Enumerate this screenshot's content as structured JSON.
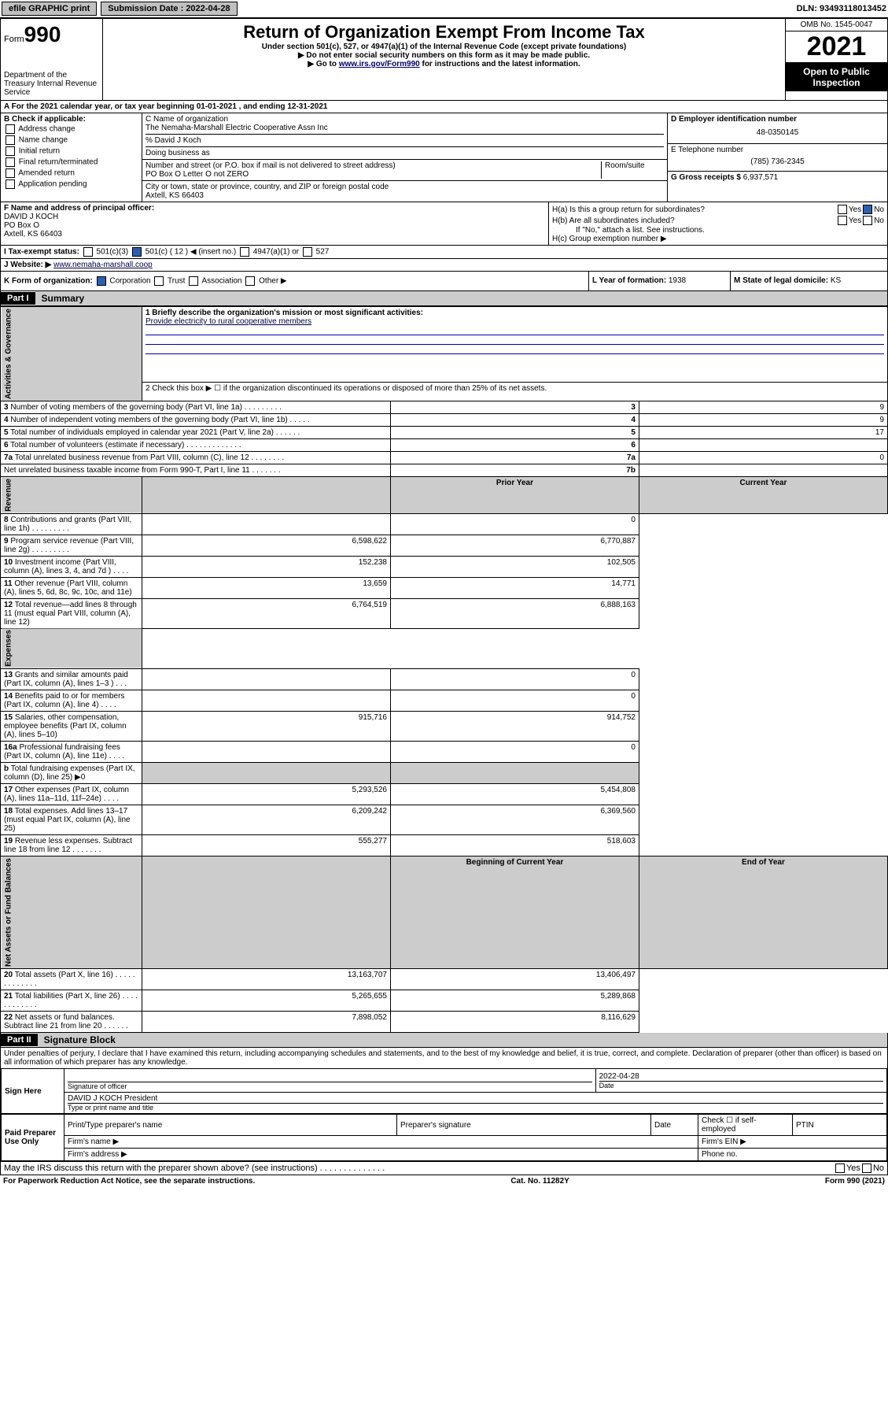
{
  "topbar": {
    "efile": "efile GRAPHIC print",
    "sub_label": "Submission Date : 2022-04-28",
    "dln": "DLN: 93493118013452"
  },
  "header": {
    "form_label": "Form",
    "form_num": "990",
    "dept": "Department of the Treasury Internal Revenue Service",
    "title": "Return of Organization Exempt From Income Tax",
    "sub": "Under section 501(c), 527, or 4947(a)(1) of the Internal Revenue Code (except private foundations)",
    "inst1": "▶ Do not enter social security numbers on this form as it may be made public.",
    "inst2_pre": "▶ Go to ",
    "inst2_link": "www.irs.gov/Form990",
    "inst2_post": " for instructions and the latest information.",
    "omb": "OMB No. 1545-0047",
    "year": "2021",
    "open": "Open to Public Inspection"
  },
  "section_a": "A For the 2021 calendar year, or tax year beginning 01-01-2021   , and ending 12-31-2021",
  "col_b": {
    "label": "B Check if applicable:",
    "items": [
      "Address change",
      "Name change",
      "Initial return",
      "Final return/terminated",
      "Amended return",
      "Application pending"
    ]
  },
  "col_c": {
    "name_label": "C Name of organization",
    "name": "The Nemaha-Marshall Electric Cooperative Assn Inc",
    "care_of": "% David J Koch",
    "dba_label": "Doing business as",
    "addr_label": "Number and street (or P.O. box if mail is not delivered to street address)",
    "addr": "PO Box O Letter O not ZERO",
    "room_label": "Room/suite",
    "city_label": "City or town, state or province, country, and ZIP or foreign postal code",
    "city": "Axtell, KS  66403"
  },
  "col_de": {
    "d_label": "D Employer identification number",
    "d_val": "48-0350145",
    "e_label": "E Telephone number",
    "e_val": "(785) 736-2345",
    "g_label": "G Gross receipts $",
    "g_val": "6,937,571"
  },
  "col_f": {
    "label": "F Name and address of principal officer:",
    "name": "DAVID J KOCH",
    "addr": "PO Box O",
    "city": "Axtell, KS  66403"
  },
  "col_h": {
    "a_label": "H(a) Is this a group return for subordinates?",
    "b_label": "H(b) Are all subordinates included?",
    "b_note": "If \"No,\" attach a list. See instructions.",
    "c_label": "H(c) Group exemption number ▶",
    "yes": "Yes",
    "no": "No"
  },
  "row_i": {
    "label": "I    Tax-exempt status:",
    "opts": [
      "501(c)(3)",
      "501(c) ( 12 ) ◀ (insert no.)",
      "4947(a)(1) or",
      "527"
    ]
  },
  "row_j": {
    "label": "J   Website: ▶",
    "val": "www.nemaha-marshall.coop"
  },
  "row_k": {
    "label": "K Form of organization:",
    "opts": [
      "Corporation",
      "Trust",
      "Association",
      "Other ▶"
    ]
  },
  "row_l": {
    "label": "L Year of formation:",
    "val": "1938"
  },
  "row_m": {
    "label": "M State of legal domicile:",
    "val": "KS"
  },
  "part1": {
    "header": "Part I",
    "title": "Summary",
    "q1_label": "1  Briefly describe the organization's mission or most significant activities:",
    "q1_val": "Provide electricity to rural cooperative members",
    "q2": "2   Check this box ▶ ☐ if the organization discontinued its operations or disposed of more than 25% of its net assets.",
    "governance": [
      {
        "n": "3",
        "t": "Number of voting members of the governing body (Part VI, line 1a)  .   .   .   .   .   .   .   .   .",
        "k": "3",
        "v": "9"
      },
      {
        "n": "4",
        "t": "Number of independent voting members of the governing body (Part VI, line 1b)   .   .   .   .   .",
        "k": "4",
        "v": "9"
      },
      {
        "n": "5",
        "t": "Total number of individuals employed in calendar year 2021 (Part V, line 2a)   .   .   .   .   .   .",
        "k": "5",
        "v": "17"
      },
      {
        "n": "6",
        "t": "Total number of volunteers (estimate if necessary)   .   .   .   .   .   .   .   .   .   .   .   .   .",
        "k": "6",
        "v": ""
      },
      {
        "n": "7a",
        "t": "Total unrelated business revenue from Part VIII, column (C), line 12   .   .   .   .   .   .   .   .",
        "k": "7a",
        "v": "0"
      },
      {
        "n": "",
        "t": "Net unrelated business taxable income from Form 990-T, Part I, line 11   .   .   .   .   .   .   .",
        "k": "7b",
        "v": ""
      }
    ],
    "col_prior": "Prior Year",
    "col_current": "Current Year",
    "revenue": [
      {
        "n": "8",
        "t": "Contributions and grants (Part VIII, line 1h)   .   .   .   .   .   .   .   .   .",
        "p": "",
        "c": "0"
      },
      {
        "n": "9",
        "t": "Program service revenue (Part VIII, line 2g)   .   .   .   .   .   .   .   .   .",
        "p": "6,598,622",
        "c": "6,770,887"
      },
      {
        "n": "10",
        "t": "Investment income (Part VIII, column (A), lines 3, 4, and 7d )   .   .   .   .",
        "p": "152,238",
        "c": "102,505"
      },
      {
        "n": "11",
        "t": "Other revenue (Part VIII, column (A), lines 5, 6d, 8c, 9c, 10c, and 11e)",
        "p": "13,659",
        "c": "14,771"
      },
      {
        "n": "12",
        "t": "Total revenue—add lines 8 through 11 (must equal Part VIII, column (A), line 12)",
        "p": "6,764,519",
        "c": "6,888,163"
      }
    ],
    "expenses": [
      {
        "n": "13",
        "t": "Grants and similar amounts paid (Part IX, column (A), lines 1–3 )   .   .   .",
        "p": "",
        "c": "0"
      },
      {
        "n": "14",
        "t": "Benefits paid to or for members (Part IX, column (A), line 4)   .   .   .   .",
        "p": "",
        "c": "0"
      },
      {
        "n": "15",
        "t": "Salaries, other compensation, employee benefits (Part IX, column (A), lines 5–10)",
        "p": "915,716",
        "c": "914,752"
      },
      {
        "n": "16a",
        "t": "Professional fundraising fees (Part IX, column (A), line 11e)   .   .   .   .",
        "p": "",
        "c": "0"
      },
      {
        "n": "b",
        "t": "Total fundraising expenses (Part IX, column (D), line 25) ▶0",
        "p": "shaded",
        "c": "shaded"
      },
      {
        "n": "17",
        "t": "Other expenses (Part IX, column (A), lines 11a–11d, 11f–24e)   .   .   .   .",
        "p": "5,293,526",
        "c": "5,454,808"
      },
      {
        "n": "18",
        "t": "Total expenses. Add lines 13–17 (must equal Part IX, column (A), line 25)",
        "p": "6,209,242",
        "c": "6,369,560"
      },
      {
        "n": "19",
        "t": "Revenue less expenses. Subtract line 18 from line 12 .   .   .   .   .   .   .",
        "p": "555,277",
        "c": "518,603"
      }
    ],
    "col_begin": "Beginning of Current Year",
    "col_end": "End of Year",
    "netassets": [
      {
        "n": "20",
        "t": "Total assets (Part X, line 16)   .   .   .   .   .   .   .   .   .   .   .   .   .",
        "p": "13,163,707",
        "c": "13,406,497"
      },
      {
        "n": "21",
        "t": "Total liabilities (Part X, line 26)   .   .   .   .   .   .   .   .   .   .   .   .",
        "p": "5,265,655",
        "c": "5,289,868"
      },
      {
        "n": "22",
        "t": "Net assets or fund balances. Subtract line 21 from line 20 .   .   .   .   .   .",
        "p": "7,898,052",
        "c": "8,116,629"
      }
    ],
    "vtab_gov": "Activities & Governance",
    "vtab_rev": "Revenue",
    "vtab_exp": "Expenses",
    "vtab_net": "Net Assets or Fund Balances"
  },
  "part2": {
    "header": "Part II",
    "title": "Signature Block",
    "declare": "Under penalties of perjury, I declare that I have examined this return, including accompanying schedules and statements, and to the best of my knowledge and belief, it is true, correct, and complete. Declaration of preparer (other than officer) is based on all information of which preparer has any knowledge.",
    "sign_here": "Sign Here",
    "sig_officer": "Signature of officer",
    "sig_date": "2022-04-28",
    "date_lbl": "Date",
    "officer_name": "DAVID J KOCH President",
    "officer_type": "Type or print name and title",
    "paid": "Paid Preparer Use Only",
    "prep_name": "Print/Type preparer's name",
    "prep_sig": "Preparer's signature",
    "prep_date": "Date",
    "check_self": "Check ☐ if self-employed",
    "ptin": "PTIN",
    "firm_name": "Firm's name  ▶",
    "firm_ein": "Firm's EIN ▶",
    "firm_addr": "Firm's address ▶",
    "phone": "Phone no.",
    "may_irs": "May the IRS discuss this return with the preparer shown above? (see instructions)   .   .   .   .   .   .   .   .   .   .   .   .   .   ."
  },
  "footer": {
    "left": "For Paperwork Reduction Act Notice, see the separate instructions.",
    "mid": "Cat. No. 11282Y",
    "right": "Form 990 (2021)"
  }
}
